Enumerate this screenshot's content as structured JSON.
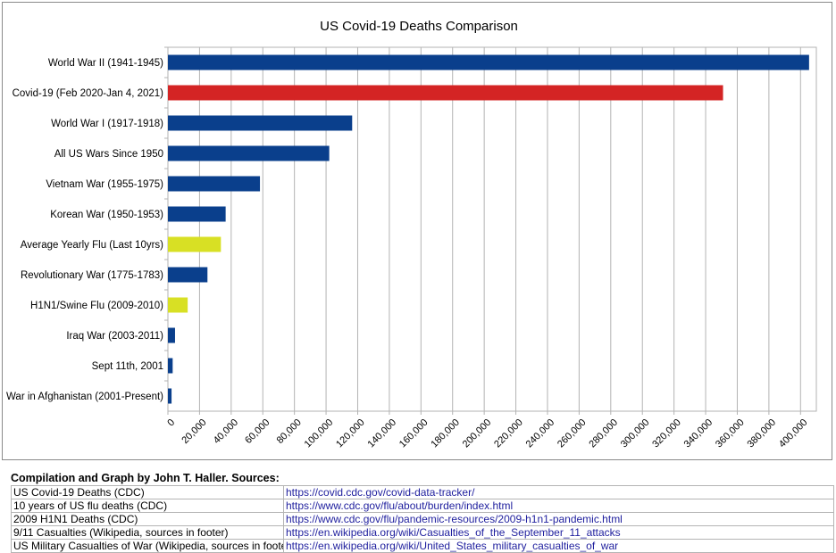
{
  "chart_data": {
    "type": "bar",
    "orientation": "horizontal",
    "title": "US Covid-19 Deaths Comparison",
    "xlabel": "",
    "ylabel": "",
    "xlim": [
      0,
      410000
    ],
    "x_ticks": [
      0,
      20000,
      40000,
      60000,
      80000,
      100000,
      120000,
      140000,
      160000,
      180000,
      200000,
      220000,
      240000,
      260000,
      280000,
      300000,
      320000,
      340000,
      360000,
      380000,
      400000
    ],
    "x_tick_labels": [
      "0",
      "20,000",
      "40,000",
      "60,000",
      "80,000",
      "100,000",
      "120,000",
      "140,000",
      "160,000",
      "180,000",
      "200,000",
      "220,000",
      "240,000",
      "260,000",
      "280,000",
      "300,000",
      "320,000",
      "340,000",
      "360,000",
      "380,000",
      "400,000"
    ],
    "grid": true,
    "legend": false,
    "categories": [
      "World War II (1941-1945)",
      "Covid-19 (Feb 2020-Jan 4, 2021)",
      "World War I (1917-1918)",
      "All US Wars Since 1950",
      "Vietnam War (1955-1975)",
      "Korean War (1950-1953)",
      "Average Yearly Flu (Last 10yrs)",
      "Revolutionary War (1775-1783)",
      "H1N1/Swine Flu (2009-2010)",
      "Iraq War (2003-2011)",
      "Sept 11th, 2001",
      "War in Afghanistan (2001-Present)"
    ],
    "values": [
      405400,
      351000,
      116500,
      102000,
      58200,
      36500,
      33500,
      25000,
      12500,
      4500,
      3000,
      2300
    ],
    "bar_colors": [
      "#0a3f8c",
      "#d42424",
      "#0a3f8c",
      "#0a3f8c",
      "#0a3f8c",
      "#0a3f8c",
      "#d8e024",
      "#0a3f8c",
      "#d8e024",
      "#0a3f8c",
      "#0a3f8c",
      "#0a3f8c"
    ]
  },
  "sources": {
    "heading": "Compilation and Graph by John T. Haller. Sources:",
    "rows": [
      {
        "name": "US Covid-19 Deaths (CDC)",
        "url": "https://covid.cdc.gov/covid-data-tracker/"
      },
      {
        "name": "10 years of US flu deaths (CDC)",
        "url": "https://www.cdc.gov/flu/about/burden/index.html"
      },
      {
        "name": "2009 H1N1 Deaths (CDC)",
        "url": "https://www.cdc.gov/flu/pandemic-resources/2009-h1n1-pandemic.html"
      },
      {
        "name": "9/11 Casualties (Wikipedia, sources in footer)",
        "url": "https://en.wikipedia.org/wiki/Casualties_of_the_September_11_attacks"
      },
      {
        "name": "US Military Casualties of War (Wikipedia, sources in footer)",
        "url": "https://en.wikipedia.org/wiki/United_States_military_casualties_of_war"
      }
    ]
  }
}
